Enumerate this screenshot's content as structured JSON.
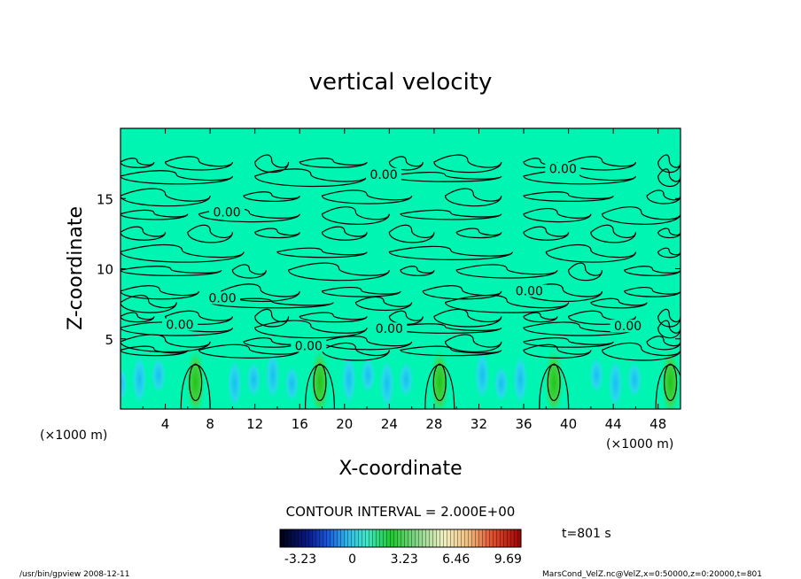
{
  "chart_data": {
    "type": "heatmap",
    "title": "vertical velocity",
    "xlabel": "X-coordinate",
    "ylabel": "Z-coordinate",
    "x_unit_left": "(×1000 m)",
    "x_unit_right": "(×1000 m)",
    "xlim": [
      0,
      50
    ],
    "ylim": [
      0,
      20
    ],
    "x_ticks": [
      "4",
      "8",
      "12",
      "16",
      "20",
      "24",
      "28",
      "32",
      "36",
      "40",
      "44",
      "48"
    ],
    "x_tick_values": [
      4,
      8,
      12,
      16,
      20,
      24,
      28,
      32,
      36,
      40,
      44,
      48
    ],
    "y_ticks": [
      "5",
      "10",
      "15"
    ],
    "y_tick_values": [
      5,
      10,
      15
    ],
    "contour_interval_text": "CONTOUR INTERVAL = 2.000E+00",
    "contour_labels": [
      {
        "text": "0.00",
        "x": 23.5,
        "z": 16.6
      },
      {
        "text": "0.00",
        "x": 39.5,
        "z": 17.0
      },
      {
        "text": "0.00",
        "x": 9.5,
        "z": 13.9
      },
      {
        "text": "0.00",
        "x": 9.1,
        "z": 7.8
      },
      {
        "text": "0.00",
        "x": 36.5,
        "z": 8.3
      },
      {
        "text": "0.00",
        "x": 5.3,
        "z": 5.9
      },
      {
        "text": "0.00",
        "x": 24.0,
        "z": 5.6
      },
      {
        "text": "0.00",
        "x": 45.3,
        "z": 5.8
      },
      {
        "text": "0.00",
        "x": 16.8,
        "z": 4.4
      }
    ],
    "updraft_cores_x": [
      6.7,
      17.8,
      28.5,
      38.7,
      49.1
    ],
    "colorbar": {
      "ticks": [
        "-3.23",
        "0",
        "3.23",
        "6.46",
        "9.69"
      ],
      "tick_values": [
        -3.23,
        0,
        3.23,
        6.46,
        9.69
      ],
      "range": [
        -4.5,
        10.5
      ]
    },
    "time_text": "t=801 s",
    "colors": {
      "background": "#00f5b2",
      "updraft": "#28c828",
      "downdraft": "#29d2f5"
    }
  },
  "footer": {
    "left": "/usr/bin/gpview  2008-12-11",
    "right": "MarsCond_VelZ.nc@VelZ,x=0:50000,z=0:20000,t=801"
  }
}
